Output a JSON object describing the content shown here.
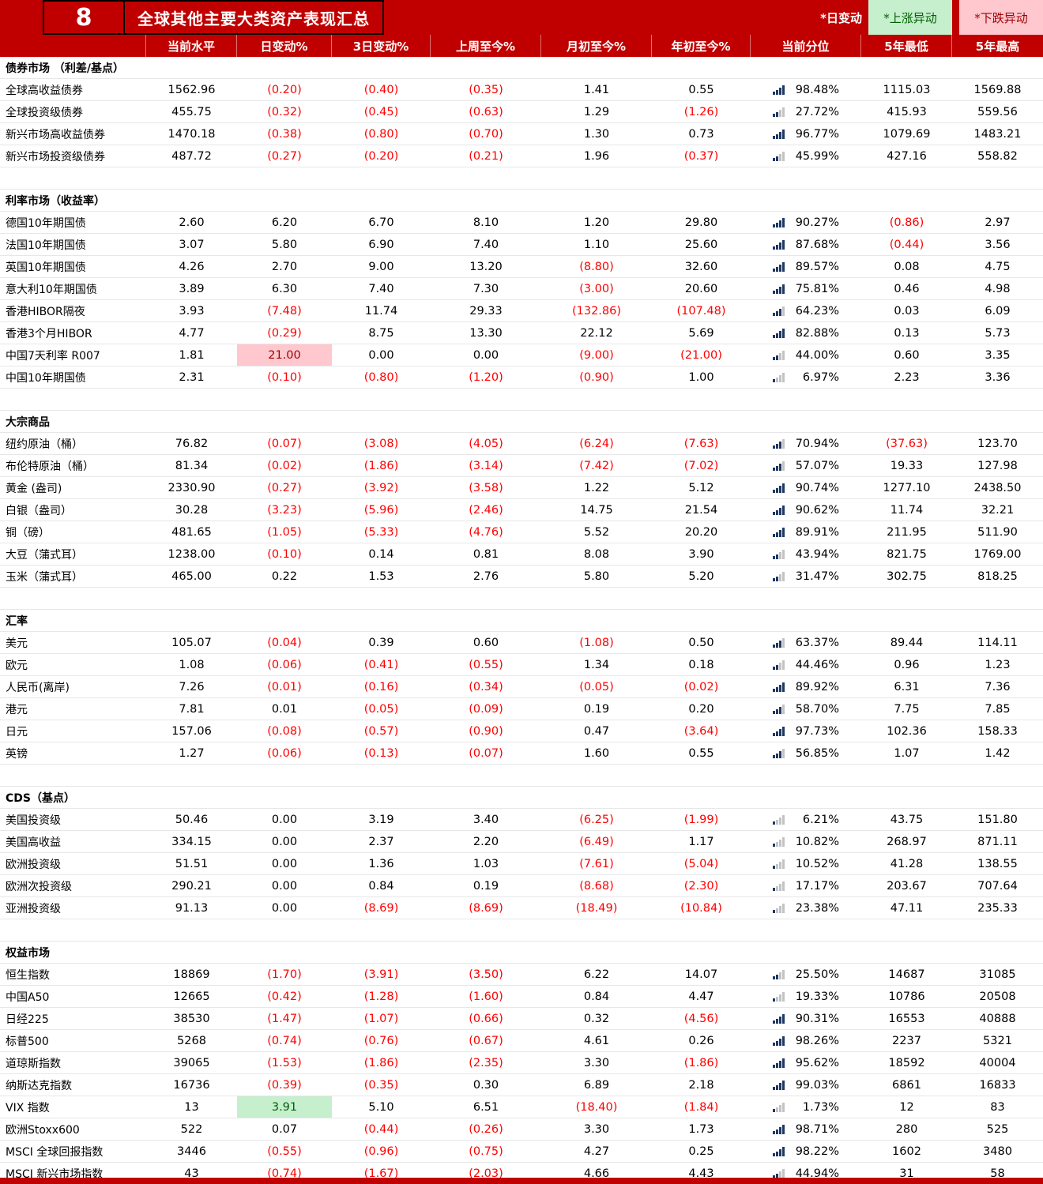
{
  "page": {
    "badge": "8",
    "title": "全球其他主要大类资产表现汇总",
    "legend": [
      {
        "label": "*日变动",
        "type": "plain"
      },
      {
        "label": "*上涨异动",
        "type": "up"
      },
      {
        "label": "*下跌异动",
        "type": "down"
      }
    ]
  },
  "colors": {
    "header_red": "#C00000",
    "negative_text": "#FF0000",
    "up_bg": "#C6EFCE",
    "up_text": "#006100",
    "down_bg": "#FFC7CE",
    "down_text": "#9C0006",
    "histogram_filled": "#1F3864",
    "histogram_empty": "#C3C3C3"
  },
  "columns": [
    "当前水平",
    "日变动%",
    "3日变动%",
    "上周至今%",
    "月初至今%",
    "年初至今%",
    "当前分位",
    "5年最低",
    "5年最高"
  ],
  "sections": [
    {
      "title": "债券市场 （利差/基点）",
      "rows": [
        {
          "label": "全球高收益债券",
          "values": [
            "1562.96",
            "(0.20)",
            "(0.40)",
            "(0.35)",
            "1.41",
            "0.55",
            "98.48%",
            "1115.03",
            "1569.88"
          ]
        },
        {
          "label": "全球投资级债券",
          "values": [
            "455.75",
            "(0.32)",
            "(0.45)",
            "(0.63)",
            "1.29",
            "(1.26)",
            "27.72%",
            "415.93",
            "559.56"
          ]
        },
        {
          "label": "新兴市场高收益债券",
          "values": [
            "1470.18",
            "(0.38)",
            "(0.80)",
            "(0.70)",
            "1.30",
            "0.73",
            "96.77%",
            "1079.69",
            "1483.21"
          ]
        },
        {
          "label": "新兴市场投资级债券",
          "values": [
            "487.72",
            "(0.27)",
            "(0.20)",
            "(0.21)",
            "1.96",
            "(0.37)",
            "45.99%",
            "427.16",
            "558.82"
          ]
        }
      ]
    },
    {
      "title": "利率市场（收益率）",
      "rows": [
        {
          "label": "德国10年期国债",
          "values": [
            "2.60",
            "6.20",
            "6.70",
            "8.10",
            "1.20",
            "29.80",
            "90.27%",
            "(0.86)",
            "2.97"
          ]
        },
        {
          "label": "法国10年期国债",
          "values": [
            "3.07",
            "5.80",
            "6.90",
            "7.40",
            "1.10",
            "25.60",
            "87.68%",
            "(0.44)",
            "3.56"
          ]
        },
        {
          "label": "英国10年期国债",
          "values": [
            "4.26",
            "2.70",
            "9.00",
            "13.20",
            "(8.80)",
            "32.60",
            "89.57%",
            "0.08",
            "4.75"
          ]
        },
        {
          "label": "意大利10年期国债",
          "values": [
            "3.89",
            "6.30",
            "7.40",
            "7.30",
            "(3.00)",
            "20.60",
            "75.81%",
            "0.46",
            "4.98"
          ]
        },
        {
          "label": "香港HIBOR隔夜",
          "values": [
            "3.93",
            "(7.48)",
            "11.74",
            "29.33",
            "(132.86)",
            "(107.48)",
            "64.23%",
            "0.03",
            "6.09"
          ]
        },
        {
          "label": "香港3个月HIBOR",
          "values": [
            "4.77",
            "(0.29)",
            "8.75",
            "13.30",
            "22.12",
            "5.69",
            "82.88%",
            "0.13",
            "5.73"
          ]
        },
        {
          "label": "中国7天利率 R007",
          "values": [
            "1.81",
            "21.00",
            "0.00",
            "0.00",
            "(9.00)",
            "(21.00)",
            "44.00%",
            "0.60",
            "3.35"
          ],
          "day_highlight": "down"
        },
        {
          "label": "中国10年期国债",
          "values": [
            "2.31",
            "(0.10)",
            "(0.80)",
            "(1.20)",
            "(0.90)",
            "1.00",
            "6.97%",
            "2.23",
            "3.36"
          ]
        }
      ]
    },
    {
      "title": "大宗商品",
      "rows": [
        {
          "label": "纽约原油（桶）",
          "values": [
            "76.82",
            "(0.07)",
            "(3.08)",
            "(4.05)",
            "(6.24)",
            "(7.63)",
            "70.94%",
            "(37.63)",
            "123.70"
          ]
        },
        {
          "label": "布伦特原油（桶）",
          "values": [
            "81.34",
            "(0.02)",
            "(1.86)",
            "(3.14)",
            "(7.42)",
            "(7.02)",
            "57.07%",
            "19.33",
            "127.98"
          ]
        },
        {
          "label": "黄金 (盎司)",
          "values": [
            "2330.90",
            "(0.27)",
            "(3.92)",
            "(3.58)",
            "1.22",
            "5.12",
            "90.74%",
            "1277.10",
            "2438.50"
          ]
        },
        {
          "label": "白银（盎司）",
          "values": [
            "30.28",
            "(3.23)",
            "(5.96)",
            "(2.46)",
            "14.75",
            "21.54",
            "90.62%",
            "11.74",
            "32.21"
          ]
        },
        {
          "label": "铜（磅）",
          "values": [
            "481.65",
            "(1.05)",
            "(5.33)",
            "(4.76)",
            "5.52",
            "20.20",
            "89.91%",
            "211.95",
            "511.90"
          ]
        },
        {
          "label": "大豆（蒲式耳）",
          "values": [
            "1238.00",
            "(0.10)",
            "0.14",
            "0.81",
            "8.08",
            "3.90",
            "43.94%",
            "821.75",
            "1769.00"
          ]
        },
        {
          "label": "玉米（蒲式耳）",
          "values": [
            "465.00",
            "0.22",
            "1.53",
            "2.76",
            "5.80",
            "5.20",
            "31.47%",
            "302.75",
            "818.25"
          ]
        }
      ]
    },
    {
      "title": "汇率",
      "rows": [
        {
          "label": "美元",
          "values": [
            "105.07",
            "(0.04)",
            "0.39",
            "0.60",
            "(1.08)",
            "0.50",
            "63.37%",
            "89.44",
            "114.11"
          ]
        },
        {
          "label": "欧元",
          "values": [
            "1.08",
            "(0.06)",
            "(0.41)",
            "(0.55)",
            "1.34",
            "0.18",
            "44.46%",
            "0.96",
            "1.23"
          ]
        },
        {
          "label": "人民币(离岸)",
          "values": [
            "7.26",
            "(0.01)",
            "(0.16)",
            "(0.34)",
            "(0.05)",
            "(0.02)",
            "89.92%",
            "6.31",
            "7.36"
          ]
        },
        {
          "label": "港元",
          "values": [
            "7.81",
            "0.01",
            "(0.05)",
            "(0.09)",
            "0.19",
            "0.20",
            "58.70%",
            "7.75",
            "7.85"
          ]
        },
        {
          "label": "日元",
          "values": [
            "157.06",
            "(0.08)",
            "(0.57)",
            "(0.90)",
            "0.47",
            "(3.64)",
            "97.73%",
            "102.36",
            "158.33"
          ]
        },
        {
          "label": "英镑",
          "values": [
            "1.27",
            "(0.06)",
            "(0.13)",
            "(0.07)",
            "1.60",
            "0.55",
            "56.85%",
            "1.07",
            "1.42"
          ]
        }
      ]
    },
    {
      "title": "CDS（基点）",
      "rows": [
        {
          "label": "美国投资级",
          "values": [
            "50.46",
            "0.00",
            "3.19",
            "3.40",
            "(6.25)",
            "(1.99)",
            "6.21%",
            "43.75",
            "151.80"
          ]
        },
        {
          "label": "美国高收益",
          "values": [
            "334.15",
            "0.00",
            "2.37",
            "2.20",
            "(6.49)",
            "1.17",
            "10.82%",
            "268.97",
            "871.11"
          ]
        },
        {
          "label": "欧洲投资级",
          "values": [
            "51.51",
            "0.00",
            "1.36",
            "1.03",
            "(7.61)",
            "(5.04)",
            "10.52%",
            "41.28",
            "138.55"
          ]
        },
        {
          "label": "欧洲次投资级",
          "values": [
            "290.21",
            "0.00",
            "0.84",
            "0.19",
            "(8.68)",
            "(2.30)",
            "17.17%",
            "203.67",
            "707.64"
          ]
        },
        {
          "label": "亚洲投资级",
          "values": [
            "91.13",
            "0.00",
            "(8.69)",
            "(8.69)",
            "(18.49)",
            "(10.84)",
            "23.38%",
            "47.11",
            "235.33"
          ]
        }
      ]
    },
    {
      "title": "权益市场",
      "rows": [
        {
          "label": "恒生指数",
          "values": [
            "18869",
            "(1.70)",
            "(3.91)",
            "(3.50)",
            "6.22",
            "14.07",
            "25.50%",
            "14687",
            "31085"
          ]
        },
        {
          "label": "中国A50",
          "values": [
            "12665",
            "(0.42)",
            "(1.28)",
            "(1.60)",
            "0.84",
            "4.47",
            "19.33%",
            "10786",
            "20508"
          ]
        },
        {
          "label": "日经225",
          "values": [
            "38530",
            "(1.47)",
            "(1.07)",
            "(0.66)",
            "0.32",
            "(4.56)",
            "90.31%",
            "16553",
            "40888"
          ]
        },
        {
          "label": "标普500",
          "values": [
            "5268",
            "(0.74)",
            "(0.76)",
            "(0.67)",
            "4.61",
            "0.26",
            "98.26%",
            "2237",
            "5321"
          ]
        },
        {
          "label": "道琼斯指数",
          "values": [
            "39065",
            "(1.53)",
            "(1.86)",
            "(2.35)",
            "3.30",
            "(1.86)",
            "95.62%",
            "18592",
            "40004"
          ]
        },
        {
          "label": "纳斯达克指数",
          "values": [
            "16736",
            "(0.39)",
            "(0.35)",
            "0.30",
            "6.89",
            "2.18",
            "99.03%",
            "6861",
            "16833"
          ]
        },
        {
          "label": "VIX 指数",
          "values": [
            "13",
            "3.91",
            "5.10",
            "6.51",
            "(18.40)",
            "(1.84)",
            "1.73%",
            "12",
            "83"
          ],
          "day_highlight": "up"
        },
        {
          "label": "欧洲Stoxx600",
          "values": [
            "522",
            "0.07",
            "(0.44)",
            "(0.26)",
            "3.30",
            "1.73",
            "98.71%",
            "280",
            "525"
          ]
        },
        {
          "label": "MSCI 全球回报指数",
          "values": [
            "3446",
            "(0.55)",
            "(0.96)",
            "(0.75)",
            "4.27",
            "0.25",
            "98.22%",
            "1602",
            "3480"
          ]
        },
        {
          "label": "MSCI 新兴市场指数",
          "values": [
            "43",
            "(0.74)",
            "(1.67)",
            "(2.03)",
            "4.66",
            "4.43",
            "44.94%",
            "31",
            "58"
          ]
        }
      ]
    }
  ]
}
